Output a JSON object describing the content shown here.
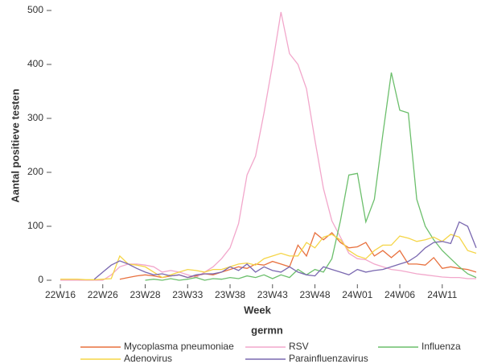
{
  "chart_data": {
    "type": "line",
    "x_label": "Week",
    "y_label": "Aantal positieve testen",
    "categories": [
      "22W16",
      null,
      null,
      null,
      null,
      "22W26",
      null,
      null,
      null,
      null,
      "23W28",
      null,
      null,
      null,
      null,
      "23W33",
      null,
      null,
      null,
      null,
      "23W38",
      null,
      null,
      null,
      null,
      "23W43",
      null,
      null,
      null,
      null,
      "23W48",
      null,
      null,
      null,
      null,
      "24W01",
      null,
      null,
      null,
      null,
      "24W06",
      null,
      null,
      null,
      null,
      "24W11",
      null,
      null,
      null,
      null
    ],
    "ylim": [
      0,
      500
    ],
    "yticks": [
      0,
      100,
      200,
      300,
      400,
      500
    ],
    "grid": false,
    "legend_title": "germn",
    "legend_position": "bottom",
    "series": [
      {
        "name": "Mycoplasma pneumoniae",
        "color": "#e8713f",
        "values": [
          null,
          null,
          null,
          null,
          null,
          null,
          null,
          2,
          5,
          8,
          10,
          8,
          5,
          8,
          10,
          5,
          8,
          12,
          10,
          15,
          20,
          25,
          22,
          30,
          28,
          35,
          30,
          25,
          65,
          45,
          88,
          75,
          88,
          70,
          60,
          62,
          70,
          45,
          55,
          42,
          55,
          30,
          30,
          28,
          42,
          22,
          25,
          22,
          20,
          15
        ]
      },
      {
        "name": "RSV",
        "color": "#f2a7cb",
        "values": [
          0,
          0,
          0,
          0,
          0,
          0,
          10,
          25,
          30,
          30,
          28,
          25,
          15,
          18,
          15,
          10,
          5,
          15,
          25,
          40,
          60,
          105,
          195,
          230,
          310,
          400,
          497,
          420,
          400,
          355,
          260,
          170,
          110,
          80,
          50,
          40,
          38,
          30,
          25,
          20,
          18,
          15,
          12,
          10,
          8,
          6,
          5,
          5,
          3,
          3
        ]
      },
      {
        "name": "Influenza",
        "color": "#6cbf6c",
        "values": [
          null,
          null,
          null,
          null,
          null,
          null,
          null,
          null,
          null,
          null,
          0,
          2,
          0,
          3,
          0,
          2,
          5,
          0,
          3,
          2,
          5,
          3,
          8,
          5,
          10,
          3,
          10,
          5,
          20,
          10,
          20,
          15,
          40,
          110,
          195,
          198,
          108,
          150,
          270,
          385,
          315,
          310,
          150,
          100,
          75,
          55,
          40,
          25,
          12,
          5
        ]
      },
      {
        "name": "Adenovirus",
        "color": "#f5d547",
        "values": [
          2,
          2,
          2,
          1,
          1,
          2,
          3,
          45,
          30,
          28,
          25,
          15,
          5,
          10,
          15,
          20,
          18,
          15,
          20,
          20,
          25,
          30,
          32,
          28,
          40,
          45,
          50,
          45,
          45,
          70,
          60,
          80,
          85,
          75,
          55,
          45,
          40,
          55,
          65,
          65,
          82,
          78,
          72,
          75,
          80,
          72,
          85,
          80,
          55,
          50
        ]
      },
      {
        "name": "Parainfluenzavirus",
        "color": "#7a68b0",
        "values": [
          null,
          null,
          null,
          null,
          2,
          15,
          28,
          36,
          30,
          22,
          15,
          10,
          12,
          8,
          10,
          5,
          10,
          12,
          12,
          15,
          25,
          18,
          30,
          15,
          25,
          18,
          15,
          25,
          15,
          10,
          8,
          25,
          20,
          15,
          10,
          20,
          15,
          18,
          20,
          25,
          30,
          35,
          45,
          60,
          70,
          72,
          68,
          108,
          100,
          60
        ]
      }
    ]
  }
}
